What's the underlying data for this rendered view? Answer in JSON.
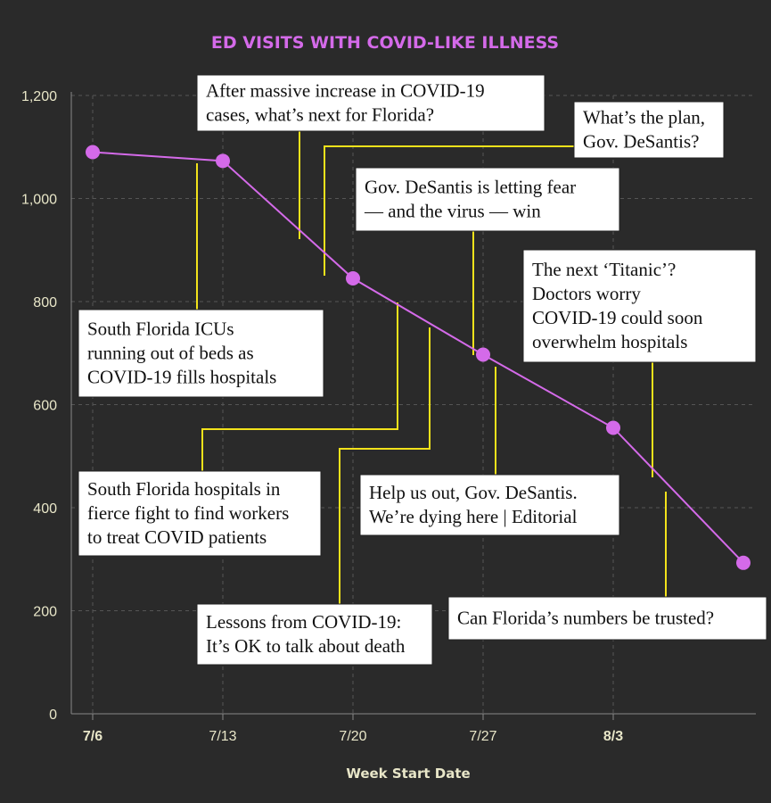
{
  "chart_data": {
    "type": "line",
    "title": "ED VISITS WITH COVID-LIKE ILLNESS",
    "xlabel": "Week Start Date",
    "ylabel": "",
    "ylim": [
      0,
      1200
    ],
    "yticks": [
      "0",
      "200",
      "400",
      "600",
      "800",
      "1,000",
      "1,200"
    ],
    "ytick_values": [
      0,
      200,
      400,
      600,
      800,
      1000,
      1200
    ],
    "xticks": [
      {
        "label": "7/6",
        "bold": true
      },
      {
        "label": "7/13",
        "bold": false
      },
      {
        "label": "7/20",
        "bold": false
      },
      {
        "label": "7/27",
        "bold": false
      },
      {
        "label": "8/3",
        "bold": true
      }
    ],
    "grid": true,
    "series": [
      {
        "color": "#d46ae9",
        "x": [
          "2020-07-06",
          "2020-07-13",
          "2020-07-20",
          "2020-07-27",
          "2020-08-03",
          "2020-08-10"
        ],
        "values": [
          1090,
          1073,
          845,
          697,
          555,
          293
        ]
      }
    ],
    "annotations": [
      {
        "lines": [
          "After massive increase in COVID-19",
          "cases, what’s next for Florida?"
        ]
      },
      {
        "lines": [
          "What’s the plan,",
          "Gov. DeSantis?"
        ]
      },
      {
        "lines": [
          "Gov. DeSantis is letting fear",
          "— and the virus — win"
        ]
      },
      {
        "lines": [
          "The next ‘Titanic’?",
          "Doctors worry",
          "COVID-19 could soon",
          "overwhelm hospitals"
        ]
      },
      {
        "lines": [
          "South Florida ICUs",
          "running out of beds as",
          "COVID-19 fills hospitals"
        ]
      },
      {
        "lines": [
          "South Florida hospitals in",
          "fierce fight to find workers",
          "to treat COVID patients"
        ]
      },
      {
        "lines": [
          "Help us out, Gov. DeSantis.",
          "We’re dying here | Editorial"
        ]
      },
      {
        "lines": [
          "Can Florida’s numbers be trusted?"
        ]
      },
      {
        "lines": [
          "Lessons from COVID-19:",
          "It’s OK to talk about death"
        ]
      }
    ],
    "colors": {
      "line": "#d46ae9",
      "leader": "#f2e21b",
      "background": "#2a2a2a",
      "text": "#e8e6c8"
    }
  }
}
